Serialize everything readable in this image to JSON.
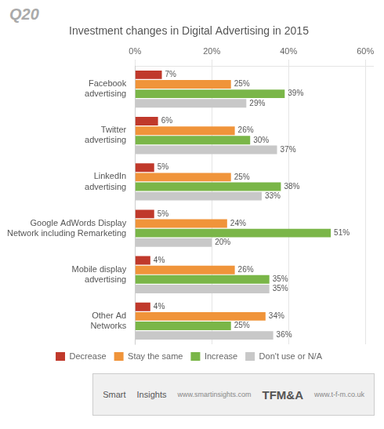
{
  "chart_data": {
    "type": "bar",
    "orientation": "horizontal",
    "title": "Investment changes in Digital Advertising in 2015",
    "annotations": [
      "Q20",
      "Smart",
      "Insights",
      "www.smartinsights.com",
      "TFM&A",
      "www.t-f-m.co.uk"
    ],
    "categories": [
      "Facebook\nadvertising",
      "Twitter\nadvertising",
      "LinkedIn\nadvertising",
      "Google AdWords Display\nNetwork including Remarketing",
      "Mobile display\nadvertising",
      "Other Ad\nNetworks"
    ],
    "series": [
      {
        "name": "Decrease",
        "color": "#c0392b",
        "values": [
          7,
          6,
          5,
          5,
          4,
          4
        ],
        "value_labels": [
          "7%",
          "6%",
          "5%",
          "5%",
          "4%",
          "4%"
        ]
      },
      {
        "name": "Stay the same",
        "color": "#f0943a",
        "values": [
          25,
          26,
          25,
          24,
          26,
          34
        ],
        "value_labels": [
          "25%",
          "26%",
          "25%",
          "24%",
          "26%",
          "34%"
        ]
      },
      {
        "name": "Increase",
        "color": "#7ab648",
        "values": [
          39,
          30,
          38,
          51,
          35,
          25
        ],
        "value_labels": [
          "39%",
          "30%",
          "38%",
          "51%",
          "35%",
          "25%"
        ]
      },
      {
        "name": "Don't use or N/A",
        "color": "#c8c8c8",
        "values": [
          29,
          37,
          33,
          20,
          35,
          36
        ],
        "value_labels": [
          "29%",
          "37%",
          "33%",
          "20%",
          "35%",
          "36%"
        ]
      }
    ],
    "xlim": [
      0,
      62
    ],
    "xticks": [
      {
        "value": 0,
        "label": "0%"
      },
      {
        "value": 20,
        "label": "20%"
      },
      {
        "value": 40,
        "label": "40%"
      },
      {
        "value": 60,
        "label": "60%"
      }
    ],
    "grid": true,
    "legend": "bottom",
    "data_labels": true
  }
}
